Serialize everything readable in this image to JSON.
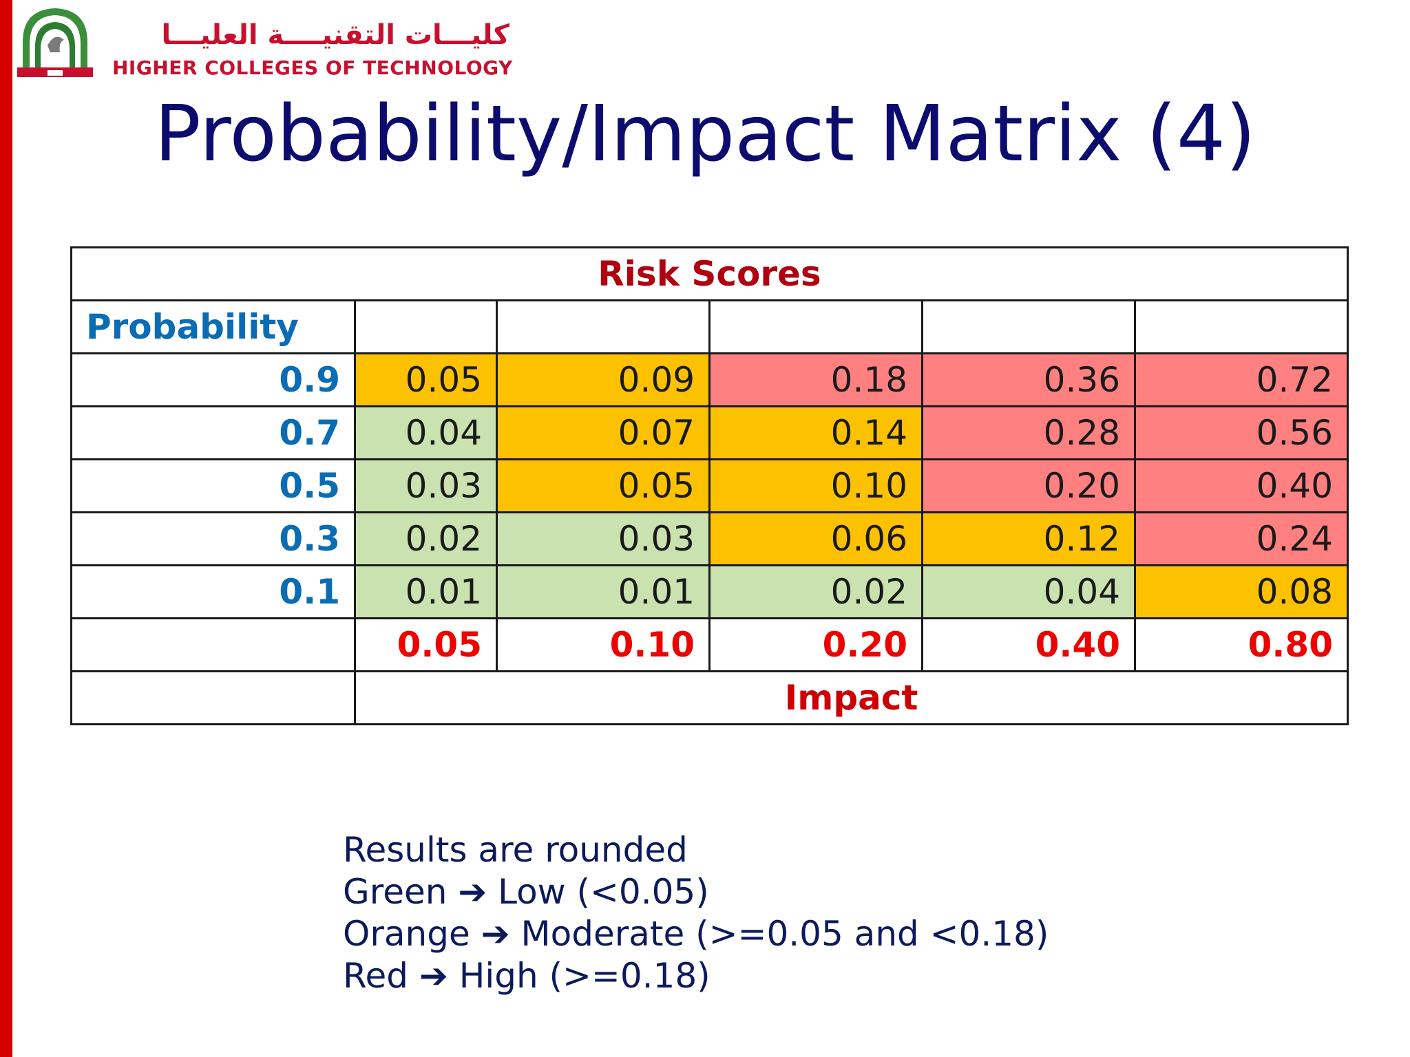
{
  "logo": {
    "arabic": "كليـــات التقنيــــة العليـــا",
    "english": "HIGHER COLLEGES OF TECHNOLOGY"
  },
  "title": "Probability/Impact Matrix (4)",
  "matrix": {
    "header": "Risk Scores",
    "probability_label": "Probability",
    "impact_label": "Impact",
    "impact_values": [
      "0.05",
      "0.10",
      "0.20",
      "0.40",
      "0.80"
    ],
    "rows": [
      {
        "prob": "0.9",
        "cells": [
          {
            "v": "0.05",
            "level": "moderate"
          },
          {
            "v": "0.09",
            "level": "moderate"
          },
          {
            "v": "0.18",
            "level": "high"
          },
          {
            "v": "0.36",
            "level": "high"
          },
          {
            "v": "0.72",
            "level": "high"
          }
        ]
      },
      {
        "prob": "0.7",
        "cells": [
          {
            "v": "0.04",
            "level": "low"
          },
          {
            "v": "0.07",
            "level": "moderate"
          },
          {
            "v": "0.14",
            "level": "moderate"
          },
          {
            "v": "0.28",
            "level": "high"
          },
          {
            "v": "0.56",
            "level": "high"
          }
        ]
      },
      {
        "prob": "0.5",
        "cells": [
          {
            "v": "0.03",
            "level": "low"
          },
          {
            "v": "0.05",
            "level": "moderate"
          },
          {
            "v": "0.10",
            "level": "moderate"
          },
          {
            "v": "0.20",
            "level": "high"
          },
          {
            "v": "0.40",
            "level": "high"
          }
        ]
      },
      {
        "prob": "0.3",
        "cells": [
          {
            "v": "0.02",
            "level": "low"
          },
          {
            "v": "0.03",
            "level": "low"
          },
          {
            "v": "0.06",
            "level": "moderate"
          },
          {
            "v": "0.12",
            "level": "moderate"
          },
          {
            "v": "0.24",
            "level": "high"
          }
        ]
      },
      {
        "prob": "0.1",
        "cells": [
          {
            "v": "0.01",
            "level": "low"
          },
          {
            "v": "0.01",
            "level": "low"
          },
          {
            "v": "0.02",
            "level": "low"
          },
          {
            "v": "0.04",
            "level": "low"
          },
          {
            "v": "0.08",
            "level": "moderate"
          }
        ]
      }
    ]
  },
  "colors": {
    "low": "#c9e2b0",
    "moderate": "#fcc100",
    "high": "#ff8080"
  },
  "notes": {
    "line1": "Results are rounded",
    "arrow": "➔",
    "line2_a": "Green",
    "line2_b": "Low (<0.05)",
    "line3_a": "Orange",
    "line3_b": "Moderate (>=0.05 and <0.18)",
    "line4_a": "Red",
    "line4_b": "High (>=0.18)"
  }
}
